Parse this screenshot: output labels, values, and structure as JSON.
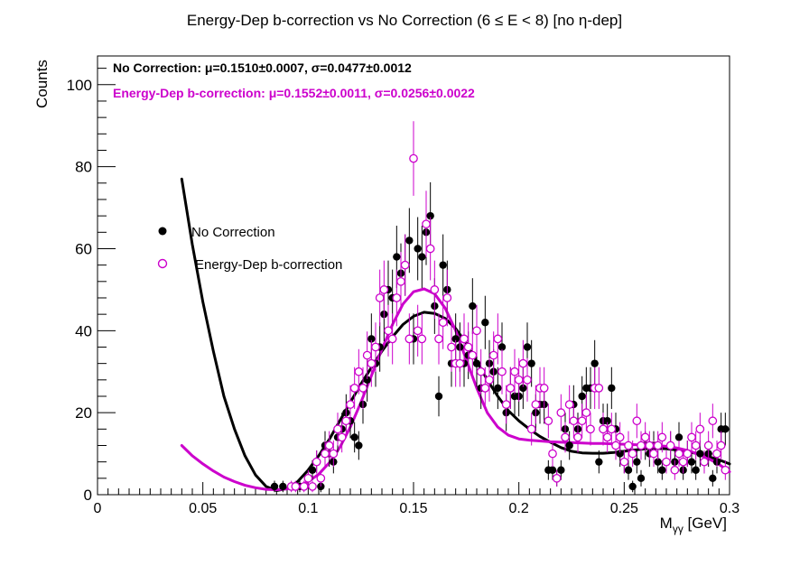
{
  "chart_data": {
    "type": "scatter",
    "title": "Energy-Dep b-correction vs No Correction   (6 ≤ E < 8)   [no η-dep]",
    "xlabel_main": "M",
    "xlabel_sub": "γγ",
    "xlabel_unit": " [GeV]",
    "ylabel": "Counts",
    "xlim": [
      0,
      0.3
    ],
    "ylim": [
      0,
      107
    ],
    "x_ticks": [
      0,
      0.05,
      0.1,
      0.15,
      0.2,
      0.25,
      0.3
    ],
    "x_tick_labels": [
      "0",
      "0.05",
      "0.1",
      "0.15",
      "0.2",
      "0.25",
      "0.3"
    ],
    "y_ticks": [
      0,
      20,
      40,
      60,
      80,
      100
    ],
    "y_tick_labels": [
      "0",
      "20",
      "40",
      "60",
      "80",
      "100"
    ],
    "grid": false,
    "legend_position": "left-middle",
    "annotations": [
      {
        "text": "No Correction: μ=0.1510±0.0007, σ=0.0477±0.0012",
        "color": "#000000"
      },
      {
        "text": "Energy-Dep b-correction: μ=0.1552±0.0011, σ=0.0256±0.0022",
        "color": "#cc00cc"
      }
    ],
    "series": [
      {
        "name": "No Correction",
        "color": "#000000",
        "marker": "filled-circle",
        "x": [
          0.084,
          0.088,
          0.096,
          0.1,
          0.102,
          0.104,
          0.106,
          0.108,
          0.11,
          0.112,
          0.114,
          0.116,
          0.118,
          0.12,
          0.122,
          0.124,
          0.126,
          0.128,
          0.13,
          0.132,
          0.134,
          0.136,
          0.138,
          0.14,
          0.142,
          0.144,
          0.146,
          0.148,
          0.15,
          0.152,
          0.154,
          0.156,
          0.158,
          0.16,
          0.162,
          0.164,
          0.166,
          0.168,
          0.17,
          0.172,
          0.174,
          0.176,
          0.178,
          0.18,
          0.182,
          0.184,
          0.186,
          0.188,
          0.19,
          0.192,
          0.194,
          0.196,
          0.198,
          0.2,
          0.202,
          0.204,
          0.206,
          0.208,
          0.21,
          0.212,
          0.214,
          0.216,
          0.218,
          0.22,
          0.222,
          0.224,
          0.226,
          0.228,
          0.23,
          0.232,
          0.234,
          0.236,
          0.238,
          0.24,
          0.242,
          0.244,
          0.246,
          0.248,
          0.25,
          0.252,
          0.254,
          0.256,
          0.258,
          0.26,
          0.262,
          0.264,
          0.266,
          0.268,
          0.27,
          0.272,
          0.274,
          0.276,
          0.278,
          0.28,
          0.282,
          0.284,
          0.286,
          0.288,
          0.29,
          0.292,
          0.294,
          0.296,
          0.298
        ],
        "y": [
          2,
          2,
          2,
          4,
          6,
          8,
          2,
          12,
          10,
          8,
          14,
          16,
          20,
          18,
          14,
          12,
          22,
          28,
          38,
          32,
          36,
          44,
          50,
          48,
          58,
          54,
          56,
          62,
          38,
          60,
          58,
          64,
          68,
          46,
          24,
          56,
          50,
          32,
          38,
          36,
          32,
          34,
          46,
          32,
          26,
          42,
          32,
          30,
          26,
          36,
          20,
          26,
          24,
          24,
          26,
          36,
          32,
          20,
          22,
          22,
          6,
          6,
          4,
          6,
          16,
          12,
          22,
          16,
          24,
          26,
          26,
          32,
          8,
          18,
          18,
          26,
          16,
          10,
          8,
          6,
          2,
          8,
          4,
          12,
          10,
          12,
          8,
          6,
          8,
          12,
          8,
          14,
          6,
          10,
          8,
          6,
          10,
          8,
          10,
          4,
          8,
          16,
          16
        ],
        "yerr": [
          1.4,
          1.4,
          1.4,
          2,
          2.4,
          2.8,
          1.4,
          3.5,
          3.2,
          2.8,
          3.7,
          4,
          4.5,
          4.2,
          3.7,
          3.5,
          4.7,
          5.3,
          6.2,
          5.7,
          6,
          6.6,
          7.1,
          6.9,
          7.6,
          7.3,
          7.5,
          7.9,
          6.2,
          7.7,
          7.6,
          8,
          8.2,
          6.8,
          4.9,
          7.5,
          7.1,
          5.7,
          6.2,
          6,
          5.7,
          5.8,
          6.8,
          5.7,
          5.1,
          6.5,
          5.7,
          5.5,
          5.1,
          6,
          4.5,
          5.1,
          4.9,
          4.9,
          5.1,
          6,
          5.7,
          4.5,
          4.7,
          4.7,
          2.4,
          2.4,
          2,
          2.4,
          4,
          3.5,
          4.7,
          4,
          4.9,
          5.1,
          5.1,
          5.7,
          2.8,
          4.2,
          4.2,
          5.1,
          4,
          3.2,
          2.8,
          2.4,
          1.4,
          2.8,
          2,
          3.5,
          3.2,
          3.5,
          2.8,
          2.4,
          2.8,
          3.5,
          2.8,
          3.7,
          2.4,
          3.2,
          2.8,
          2.4,
          3.2,
          2.8,
          3.2,
          2,
          2.8,
          4,
          4
        ]
      },
      {
        "name": "Energy-Dep b-correction",
        "color": "#cc00cc",
        "marker": "open-circle",
        "x": [
          0.092,
          0.094,
          0.098,
          0.1,
          0.102,
          0.104,
          0.106,
          0.108,
          0.11,
          0.112,
          0.114,
          0.116,
          0.118,
          0.12,
          0.122,
          0.124,
          0.126,
          0.128,
          0.13,
          0.132,
          0.134,
          0.136,
          0.138,
          0.14,
          0.142,
          0.144,
          0.146,
          0.148,
          0.15,
          0.152,
          0.154,
          0.156,
          0.158,
          0.16,
          0.162,
          0.164,
          0.166,
          0.168,
          0.17,
          0.172,
          0.174,
          0.176,
          0.178,
          0.18,
          0.182,
          0.184,
          0.186,
          0.188,
          0.19,
          0.192,
          0.194,
          0.196,
          0.198,
          0.2,
          0.202,
          0.204,
          0.206,
          0.208,
          0.21,
          0.212,
          0.214,
          0.216,
          0.218,
          0.22,
          0.222,
          0.224,
          0.226,
          0.228,
          0.23,
          0.232,
          0.234,
          0.236,
          0.238,
          0.24,
          0.242,
          0.244,
          0.246,
          0.248,
          0.25,
          0.252,
          0.254,
          0.256,
          0.258,
          0.26,
          0.262,
          0.264,
          0.266,
          0.268,
          0.27,
          0.272,
          0.274,
          0.276,
          0.278,
          0.28,
          0.282,
          0.284,
          0.286,
          0.288,
          0.29,
          0.292,
          0.294,
          0.296,
          0.298
        ],
        "y": [
          2,
          2,
          2,
          4,
          2,
          8,
          4,
          10,
          12,
          10,
          16,
          14,
          18,
          22,
          26,
          30,
          26,
          34,
          32,
          36,
          48,
          50,
          40,
          38,
          48,
          52,
          56,
          38,
          82,
          40,
          38,
          66,
          60,
          50,
          38,
          42,
          48,
          36,
          32,
          32,
          38,
          36,
          34,
          40,
          30,
          26,
          28,
          34,
          38,
          30,
          22,
          26,
          30,
          28,
          32,
          28,
          16,
          22,
          26,
          26,
          18,
          10,
          4,
          20,
          14,
          22,
          18,
          14,
          18,
          20,
          16,
          26,
          26,
          16,
          14,
          16,
          12,
          14,
          8,
          12,
          10,
          18,
          12,
          14,
          12,
          10,
          12,
          14,
          8,
          12,
          6,
          10,
          8,
          10,
          14,
          12,
          16,
          8,
          12,
          18,
          10,
          12,
          6
        ],
        "yerr": [
          1.4,
          1.4,
          1.4,
          2,
          1.4,
          2.8,
          2,
          3.2,
          3.5,
          3.2,
          4,
          3.7,
          4.2,
          4.7,
          5.1,
          5.5,
          5.1,
          5.8,
          5.7,
          6,
          6.9,
          7.1,
          6.3,
          6.2,
          6.9,
          7.2,
          7.5,
          6.2,
          9.1,
          6.3,
          6.2,
          8.1,
          7.7,
          7.1,
          6.2,
          6.5,
          6.9,
          6,
          5.7,
          5.7,
          6.2,
          6,
          5.8,
          6.3,
          5.5,
          5.1,
          5.3,
          5.8,
          6.2,
          5.5,
          4.7,
          5.1,
          5.5,
          5.3,
          5.7,
          5.3,
          4,
          4.7,
          5.1,
          5.1,
          4.2,
          3.2,
          2,
          4.5,
          3.7,
          4.7,
          4.2,
          3.7,
          4.2,
          4.5,
          4,
          5.1,
          5.1,
          4,
          3.7,
          4,
          3.5,
          3.7,
          2.8,
          3.5,
          3.2,
          4.2,
          3.5,
          3.7,
          3.5,
          3.2,
          3.5,
          3.7,
          2.8,
          3.5,
          2.4,
          3.2,
          2.8,
          3.2,
          3.7,
          3.5,
          4,
          2.8,
          3.5,
          4.2,
          3.2,
          3.5,
          2.4
        ]
      }
    ],
    "fit_curves": [
      {
        "series": "No Correction",
        "color": "#000000",
        "x": [
          0.04,
          0.045,
          0.05,
          0.055,
          0.06,
          0.065,
          0.07,
          0.075,
          0.08,
          0.085,
          0.09,
          0.095,
          0.1,
          0.105,
          0.11,
          0.115,
          0.12,
          0.125,
          0.13,
          0.135,
          0.14,
          0.145,
          0.15,
          0.155,
          0.16,
          0.165,
          0.17,
          0.175,
          0.18,
          0.185,
          0.19,
          0.195,
          0.2,
          0.205,
          0.21,
          0.215,
          0.22,
          0.225,
          0.23,
          0.235,
          0.24,
          0.245,
          0.25,
          0.255,
          0.26,
          0.265,
          0.27,
          0.275,
          0.28,
          0.285,
          0.29,
          0.295,
          0.3
        ],
        "y": [
          77,
          61,
          47,
          35,
          24,
          16,
          9.5,
          4.8,
          2,
          1,
          1.5,
          3.2,
          6,
          9.5,
          13.5,
          18,
          22.5,
          27,
          31,
          35,
          38.5,
          41.5,
          43.5,
          44.5,
          44.2,
          43,
          40.5,
          37,
          32.5,
          28,
          24,
          20.5,
          18,
          16,
          14.2,
          12.8,
          11.5,
          10.6,
          10.2,
          10.1,
          10.1,
          10.3,
          10.6,
          10.9,
          11.2,
          11.3,
          11.2,
          10.9,
          10.5,
          10,
          9.3,
          8.5,
          7.5
        ]
      },
      {
        "series": "Energy-Dep b-correction",
        "color": "#cc00cc",
        "x": [
          0.04,
          0.045,
          0.05,
          0.055,
          0.06,
          0.065,
          0.07,
          0.075,
          0.08,
          0.085,
          0.09,
          0.095,
          0.1,
          0.105,
          0.11,
          0.115,
          0.12,
          0.125,
          0.13,
          0.135,
          0.14,
          0.145,
          0.15,
          0.155,
          0.16,
          0.165,
          0.17,
          0.175,
          0.18,
          0.185,
          0.19,
          0.195,
          0.2,
          0.205,
          0.21,
          0.215,
          0.22,
          0.225,
          0.23,
          0.235,
          0.24,
          0.245,
          0.25,
          0.255,
          0.26,
          0.265,
          0.27,
          0.275,
          0.28,
          0.285,
          0.29,
          0.295,
          0.3
        ],
        "y": [
          12,
          9.5,
          7.5,
          5.8,
          4.3,
          3.2,
          2.3,
          1.7,
          1.3,
          1.2,
          1.4,
          2,
          3.2,
          5,
          7.8,
          11.5,
          16.5,
          22.5,
          29,
          35.5,
          41.5,
          46.5,
          49.5,
          50.2,
          49,
          45.5,
          40,
          33,
          26,
          20,
          16.5,
          14.5,
          13.6,
          13.3,
          13.1,
          12.9,
          12.8,
          12.7,
          12.6,
          12.5,
          12.5,
          12.4,
          12.3,
          12.2,
          12.1,
          12,
          11.8,
          11.4,
          10.8,
          9.9,
          8.8,
          7.4,
          5.6
        ]
      }
    ]
  }
}
